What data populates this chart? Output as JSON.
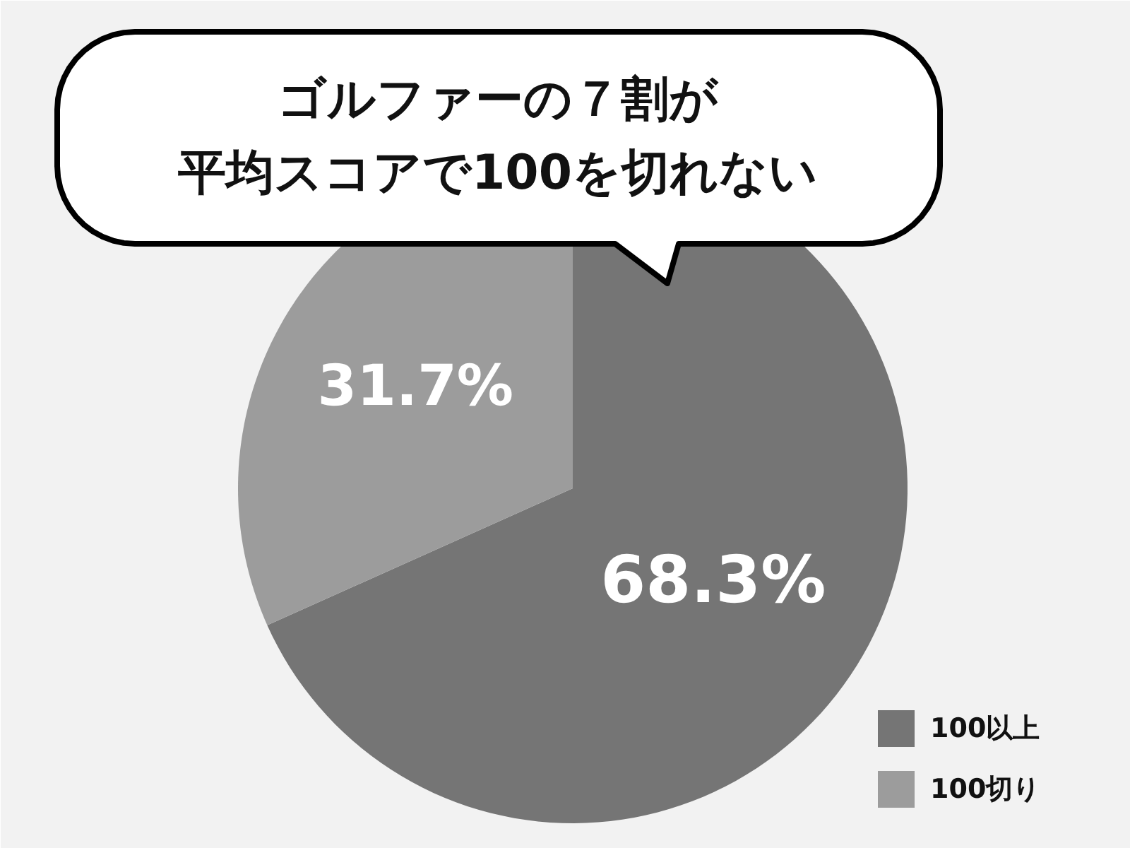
{
  "chart_data": {
    "type": "pie",
    "title": "ゴルファーの７割が平均スコアで100を切れない",
    "categories": [
      "100以上",
      "100切り"
    ],
    "values": [
      68.3,
      31.7
    ],
    "colors": [
      "#757575",
      "#9c9c9c"
    ],
    "value_labels": [
      "68.3%",
      "31.7%"
    ],
    "legend": "bottom right"
  }
}
